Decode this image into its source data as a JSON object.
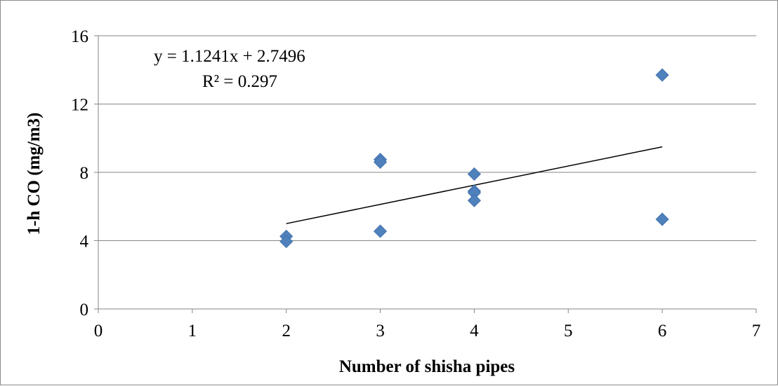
{
  "chart_data": {
    "type": "scatter",
    "xlabel": "Number of shisha pipes",
    "ylabel": "1-h CO (mg/m3)",
    "xlim": [
      0,
      7
    ],
    "ylim": [
      0,
      16
    ],
    "x_ticks": [
      "0",
      "1",
      "2",
      "3",
      "4",
      "5",
      "6",
      "7"
    ],
    "y_ticks": [
      "0",
      "4",
      "8",
      "12",
      "16"
    ],
    "y_tick_values": [
      0,
      4,
      8,
      12,
      16
    ],
    "grid": "horizontal",
    "legend": "none",
    "colors": {
      "marker": "#4F81BD",
      "trendline": "#000000",
      "grid": "#868686"
    },
    "series": [
      {
        "points": [
          {
            "x": 2,
            "y": 4.25
          },
          {
            "x": 2,
            "y": 3.95
          },
          {
            "x": 3,
            "y": 8.75
          },
          {
            "x": 3,
            "y": 8.6
          },
          {
            "x": 3,
            "y": 4.55
          },
          {
            "x": 4,
            "y": 7.9
          },
          {
            "x": 4,
            "y": 6.9
          },
          {
            "x": 4,
            "y": 6.8
          },
          {
            "x": 4,
            "y": 6.35
          },
          {
            "x": 6,
            "y": 13.7
          },
          {
            "x": 6,
            "y": 5.25
          }
        ]
      }
    ],
    "trendline": {
      "type": "linear",
      "slope": 1.1241,
      "intercept": 2.7496,
      "x_range": [
        2,
        6
      ],
      "equation_label": "y = 1.1241x + 2.7496",
      "r2_label": "R² = 0.297"
    }
  }
}
